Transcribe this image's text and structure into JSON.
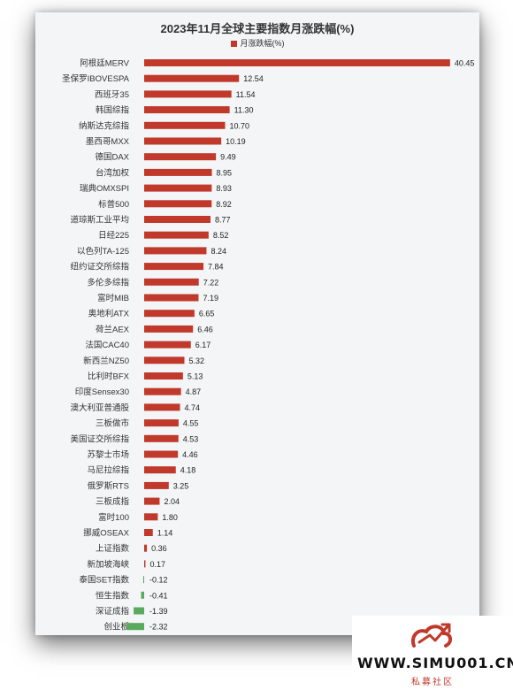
{
  "chart_data": {
    "type": "bar",
    "orientation": "horizontal",
    "title": "2023年11月全球主要指数月涨跌幅(%)",
    "legend": "月涨跌幅(%)",
    "legend_position": "top",
    "grid": false,
    "positive_color": "#c0392b",
    "negative_color": "#5aaa5e",
    "categories": [
      "阿根廷MERV",
      "圣保罗IBOVESPA",
      "西班牙35",
      "韩国综指",
      "纳斯达克综指",
      "墨西哥MXX",
      "德国DAX",
      "台湾加权",
      "瑞典OMXSPI",
      "标普500",
      "道琼斯工业平均",
      "日经225",
      "以色列TA-125",
      "纽约证交所综指",
      "多伦多综指",
      "富时MIB",
      "奥地利ATX",
      "荷兰AEX",
      "法国CAC40",
      "新西兰NZ50",
      "比利时BFX",
      "印度Sensex30",
      "澳大利亚普通股",
      "三板做市",
      "美国证交所综指",
      "苏黎士市场",
      "马尼拉综指",
      "俄罗斯RTS",
      "三板成指",
      "富时100",
      "挪威OSEAX",
      "上证指数",
      "新加坡海峡",
      "泰国SET指数",
      "恒生指数",
      "深证成指",
      "创业板"
    ],
    "values": [
      40.45,
      12.54,
      11.54,
      11.3,
      10.7,
      10.19,
      9.49,
      8.95,
      8.93,
      8.92,
      8.77,
      8.52,
      8.24,
      7.84,
      7.22,
      7.19,
      6.65,
      6.46,
      6.17,
      5.32,
      5.13,
      4.87,
      4.74,
      4.55,
      4.53,
      4.46,
      4.18,
      3.25,
      2.04,
      1.8,
      1.14,
      0.36,
      0.17,
      -0.12,
      -0.41,
      -1.39,
      -2.32
    ],
    "value_labels": [
      "40.45",
      "12.54",
      "11.54",
      "11.30",
      "10.70",
      "10.19",
      "9.49",
      "8.95",
      "8.93",
      "8.92",
      "8.77",
      "8.52",
      "8.24",
      "7.84",
      "7.22",
      "7.19",
      "6.65",
      "6.46",
      "6.17",
      "5.32",
      "5.13",
      "4.87",
      "4.74",
      "4.55",
      "4.53",
      "4.46",
      "4.18",
      "3.25",
      "2.04",
      "1.80",
      "1.14",
      "0.36",
      "0.17",
      "-0.12",
      "-0.41",
      "-1.39",
      "-2.32"
    ],
    "xlim": [
      -2.32,
      40.45
    ]
  },
  "watermark": {
    "text": "WWW.SIMU001.CN",
    "subtext": "私募社区",
    "color": "#c0392b"
  }
}
